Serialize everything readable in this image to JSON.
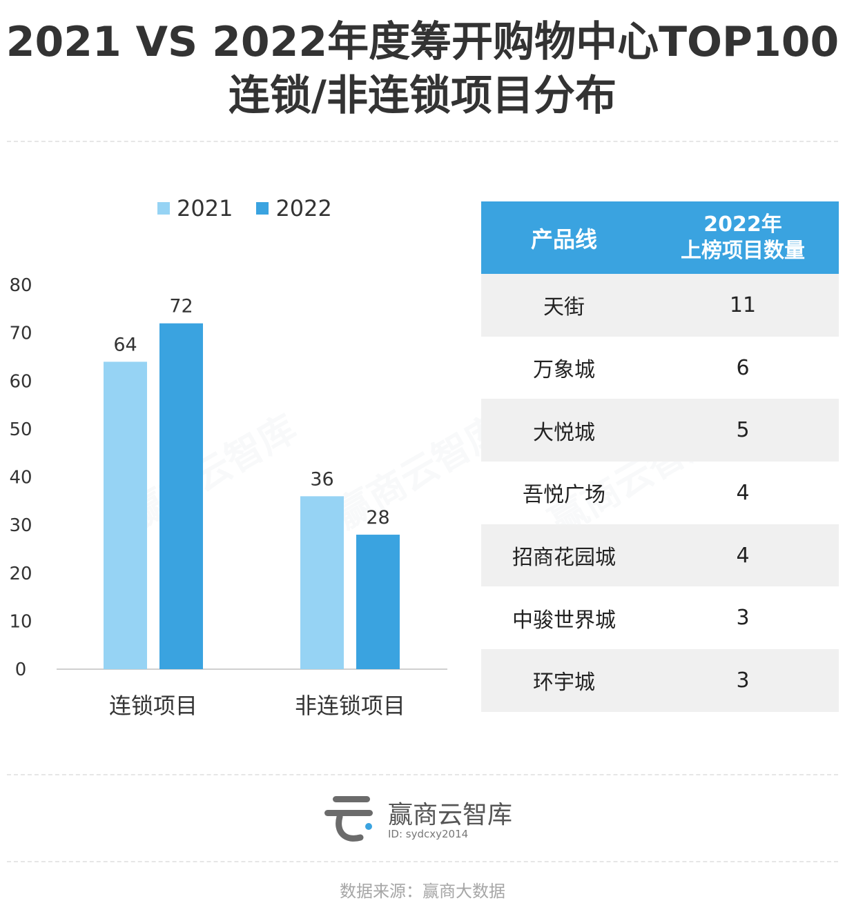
{
  "title_line1": "2021 VS 2022年度筹开购物中心TOP100",
  "title_line2": "连锁/非连锁项目分布",
  "colors": {
    "series2021": "#96d3f4",
    "series2022": "#3aa3e0",
    "table_header": "#3aa3e0"
  },
  "chart_data": {
    "type": "bar",
    "categories": [
      "连锁项目",
      "非连锁项目"
    ],
    "series": [
      {
        "name": "2021",
        "values": [
          64,
          36
        ]
      },
      {
        "name": "2022",
        "values": [
          72,
          28
        ]
      }
    ],
    "ylim": [
      0,
      80
    ],
    "yticks": [
      0,
      10,
      20,
      30,
      40,
      50,
      60,
      70,
      80
    ],
    "grid": false,
    "legend": "top"
  },
  "table": {
    "header": {
      "col1": "产品线",
      "col2_line1": "2022年",
      "col2_line2": "上榜项目数量"
    },
    "rows": [
      {
        "name": "天街",
        "count": "11"
      },
      {
        "name": "万象城",
        "count": "6"
      },
      {
        "name": "大悦城",
        "count": "5"
      },
      {
        "name": "吾悦广场",
        "count": "4"
      },
      {
        "name": "招商花园城",
        "count": "4"
      },
      {
        "name": "中骏世界城",
        "count": "3"
      },
      {
        "name": "环宇城",
        "count": "3"
      }
    ]
  },
  "brand": {
    "name": "赢商云智库",
    "id": "ID: sydcxy2014",
    "watermark": "赢商云智库"
  },
  "source": "数据来源：赢商大数据"
}
